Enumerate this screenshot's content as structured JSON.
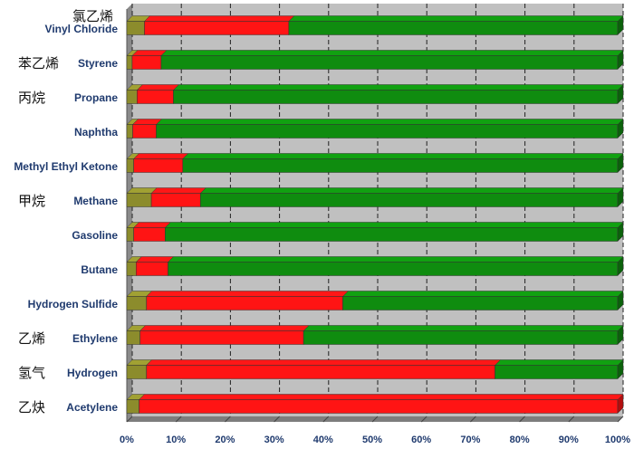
{
  "chart_data": {
    "type": "bar",
    "orientation": "horizontal",
    "stacked": "percent",
    "grid": true,
    "legend": "none",
    "xlim": [
      0,
      100
    ],
    "x_ticks": [
      "0%",
      "10%",
      "20%",
      "30%",
      "40%",
      "50%",
      "60%",
      "70%",
      "80%",
      "90%",
      "100%"
    ],
    "categories": [
      {
        "en": "Vinyl Chloride",
        "zh": "氯乙烯"
      },
      {
        "en": "Styrene",
        "zh": "苯乙烯"
      },
      {
        "en": "Propane",
        "zh": "丙烷"
      },
      {
        "en": "Naphtha",
        "zh": ""
      },
      {
        "en": "Methyl Ethyl Ketone",
        "zh": ""
      },
      {
        "en": "Methane",
        "zh": "甲烷"
      },
      {
        "en": "Gasoline",
        "zh": ""
      },
      {
        "en": "Butane",
        "zh": ""
      },
      {
        "en": "Hydrogen Sulfide",
        "zh": ""
      },
      {
        "en": "Ethylene",
        "zh": "乙烯"
      },
      {
        "en": "Hydrogen",
        "zh": "氢气"
      },
      {
        "en": "Acetylene",
        "zh": "乙炔"
      }
    ],
    "series": [
      {
        "color": "#8c8c2c",
        "values": [
          3.6,
          1.1,
          2.1,
          1.2,
          1.4,
          5.0,
          1.4,
          1.9,
          4.0,
          2.7,
          4.0,
          2.5
        ]
      },
      {
        "color": "#ff1414",
        "values": [
          29.4,
          5.9,
          7.4,
          4.8,
          10.0,
          10.0,
          6.4,
          6.5,
          40.0,
          33.3,
          71.0,
          97.5
        ]
      },
      {
        "color": "#0f8c0f",
        "values": [
          67.0,
          93.0,
          90.5,
          94.0,
          88.6,
          85.0,
          92.2,
          91.6,
          56.0,
          64.0,
          25.0,
          0.0
        ]
      }
    ]
  },
  "colors": {
    "plot_bg": "#c0c0c0",
    "wall_side": "#8a8a8a",
    "floor": "#7d7d7d",
    "grid": "#222222"
  }
}
